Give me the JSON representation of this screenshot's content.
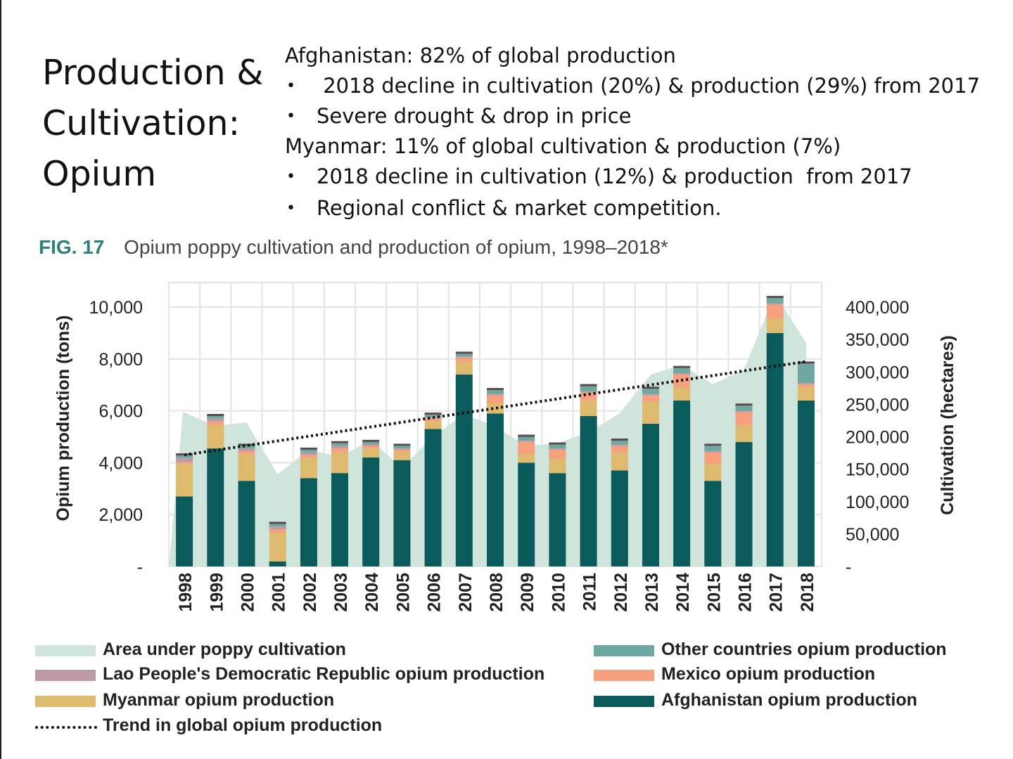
{
  "slide": {
    "title_lines": [
      "Production &",
      "Cultivation:",
      "Opium"
    ],
    "bullets": [
      {
        "text": "Afghanistan: 82% of global production",
        "level": 0
      },
      {
        "text": " 2018 decline in cultivation (20%) & production (29%) from 2017",
        "level": 1
      },
      {
        "text": "Severe drought & drop in price",
        "level": 1
      },
      {
        "text": "Myanmar: 11% of global cultivation & production (7%)",
        "level": 0
      },
      {
        "text": "2018 decline in cultivation (12%) & production  from 2017",
        "level": 1
      },
      {
        "text": "Regional conflict & market competition.",
        "level": 1
      }
    ],
    "bullet_glyph": "•"
  },
  "figure": {
    "number": "FIG. 17",
    "title": "Opium poppy cultivation and production of opium, 1998–2018*"
  },
  "colors": {
    "area": "#cfe5dc",
    "afghanistan": "#0b5a5c",
    "myanmar": "#deba6f",
    "mexico": "#f6a07d",
    "lao": "#bc9aa6",
    "other": "#6fa8a0",
    "trend": "#111111",
    "grid": "#e4e4e4",
    "fig_no": "#2f7f7b"
  },
  "chart_data": {
    "type": "bar",
    "stacked": true,
    "categories": [
      "1998",
      "1999",
      "2000",
      "2001",
      "2002",
      "2003",
      "2004",
      "2005",
      "2006",
      "2007",
      "2008",
      "2009",
      "2010",
      "2011",
      "2012",
      "2013",
      "2014",
      "2015",
      "2016",
      "2017",
      "2018"
    ],
    "ylabel": "Opium production (tons)",
    "y2label": "Cultivation (hectares)",
    "ylim": [
      0,
      10000
    ],
    "y2lim": [
      0,
      400000
    ],
    "yticks": [
      "-",
      "2,000",
      "4,000",
      "6,000",
      "8,000",
      "10,000"
    ],
    "y2ticks": [
      "-",
      "50,000",
      "100,000",
      "150,000",
      "200,000",
      "250,000",
      "300,000",
      "350,000",
      "400,000"
    ],
    "series": [
      {
        "name": "Afghanistan opium production",
        "key": "afghanistan",
        "values": [
          2700,
          4550,
          3300,
          190,
          3400,
          3600,
          4200,
          4100,
          5300,
          7400,
          5900,
          4000,
          3600,
          5800,
          3700,
          5500,
          6400,
          3300,
          4800,
          9000,
          6400
        ]
      },
      {
        "name": "Myanmar opium production",
        "key": "myanmar",
        "values": [
          1250,
          900,
          1050,
          1100,
          800,
          800,
          350,
          300,
          300,
          500,
          400,
          350,
          550,
          600,
          700,
          850,
          500,
          650,
          650,
          550,
          520
        ]
      },
      {
        "name": "Mexico opium production",
        "key": "mexico",
        "values": [
          80,
          150,
          100,
          150,
          100,
          150,
          100,
          100,
          100,
          150,
          300,
          450,
          350,
          300,
          250,
          250,
          500,
          450,
          500,
          550,
          100
        ]
      },
      {
        "name": "Lao People's Democratic Republic opium production",
        "key": "lao",
        "values": [
          150,
          100,
          100,
          100,
          100,
          100,
          50,
          50,
          50,
          50,
          50,
          50,
          50,
          50,
          50,
          50,
          50,
          50,
          50,
          50,
          50
        ]
      },
      {
        "name": "Other countries opium production",
        "key": "other",
        "values": [
          100,
          100,
          100,
          100,
          100,
          100,
          100,
          100,
          100,
          100,
          150,
          150,
          150,
          200,
          150,
          200,
          200,
          200,
          200,
          200,
          750
        ]
      }
    ],
    "area": {
      "name": "Area under poppy cultivation",
      "values": [
        238000,
        217000,
        222000,
        142000,
        180000,
        169000,
        195000,
        152000,
        201000,
        235000,
        216000,
        186000,
        190000,
        207000,
        236000,
        296000,
        311000,
        281000,
        304000,
        420000,
        345000
      ]
    },
    "trend": {
      "name": "Trend in global opium production",
      "start": 4300,
      "end": 7900
    },
    "legend_position": "bottom",
    "grid": true
  }
}
